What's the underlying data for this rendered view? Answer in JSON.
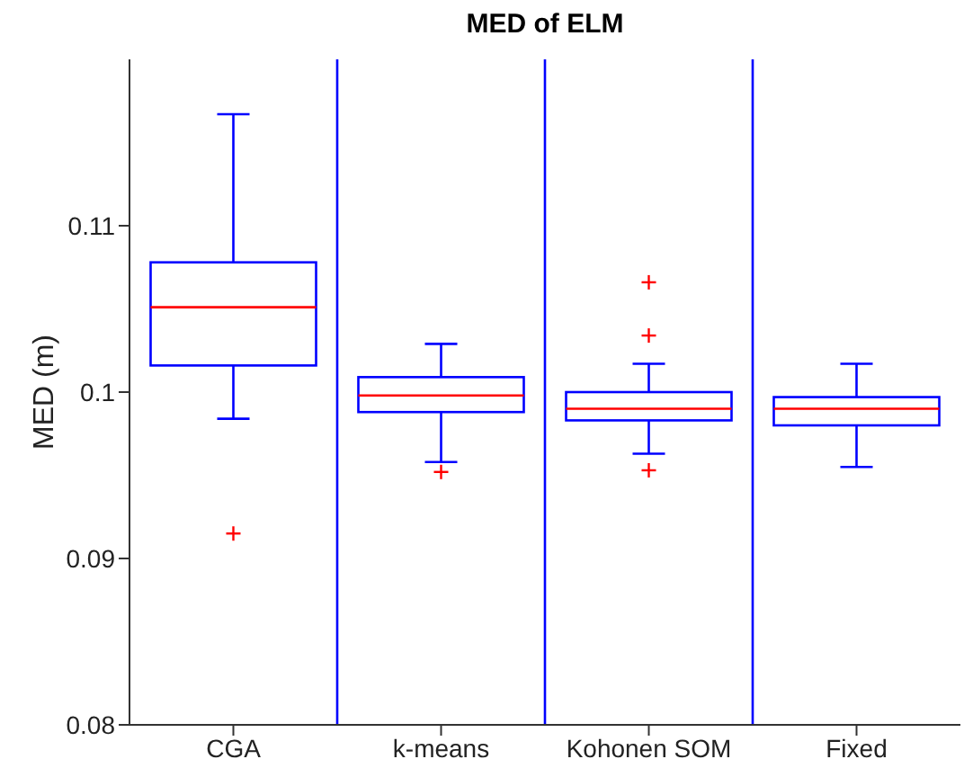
{
  "chart_data": {
    "type": "box",
    "title": "MED of ELM",
    "ylabel": "MED (m)",
    "categories": [
      "CGA",
      "k-means",
      "Kohonen SOM",
      "Fixed"
    ],
    "color": "#0000ff",
    "boxes": [
      {
        "low": 0.0984,
        "q1": 0.1016,
        "median": 0.1051,
        "q3": 0.1078,
        "high": 0.1167,
        "outliers": [
          0.0915
        ]
      },
      {
        "low": 0.0958,
        "q1": 0.0988,
        "median": 0.0998,
        "q3": 0.1009,
        "high": 0.1029,
        "outliers": [
          0.0952
        ]
      },
      {
        "low": 0.0963,
        "q1": 0.0983,
        "median": 0.099,
        "q3": 0.1,
        "high": 0.1017,
        "outliers": [
          0.1066,
          0.1034,
          0.0953
        ]
      },
      {
        "low": 0.0955,
        "q1": 0.098,
        "median": 0.099,
        "q3": 0.0997,
        "high": 0.1017
      }
    ],
    "ylim": [
      0.08,
      0.12
    ],
    "yticks": [
      0.08,
      0.09,
      0.1,
      0.11
    ],
    "grid": false,
    "legend": false
  }
}
